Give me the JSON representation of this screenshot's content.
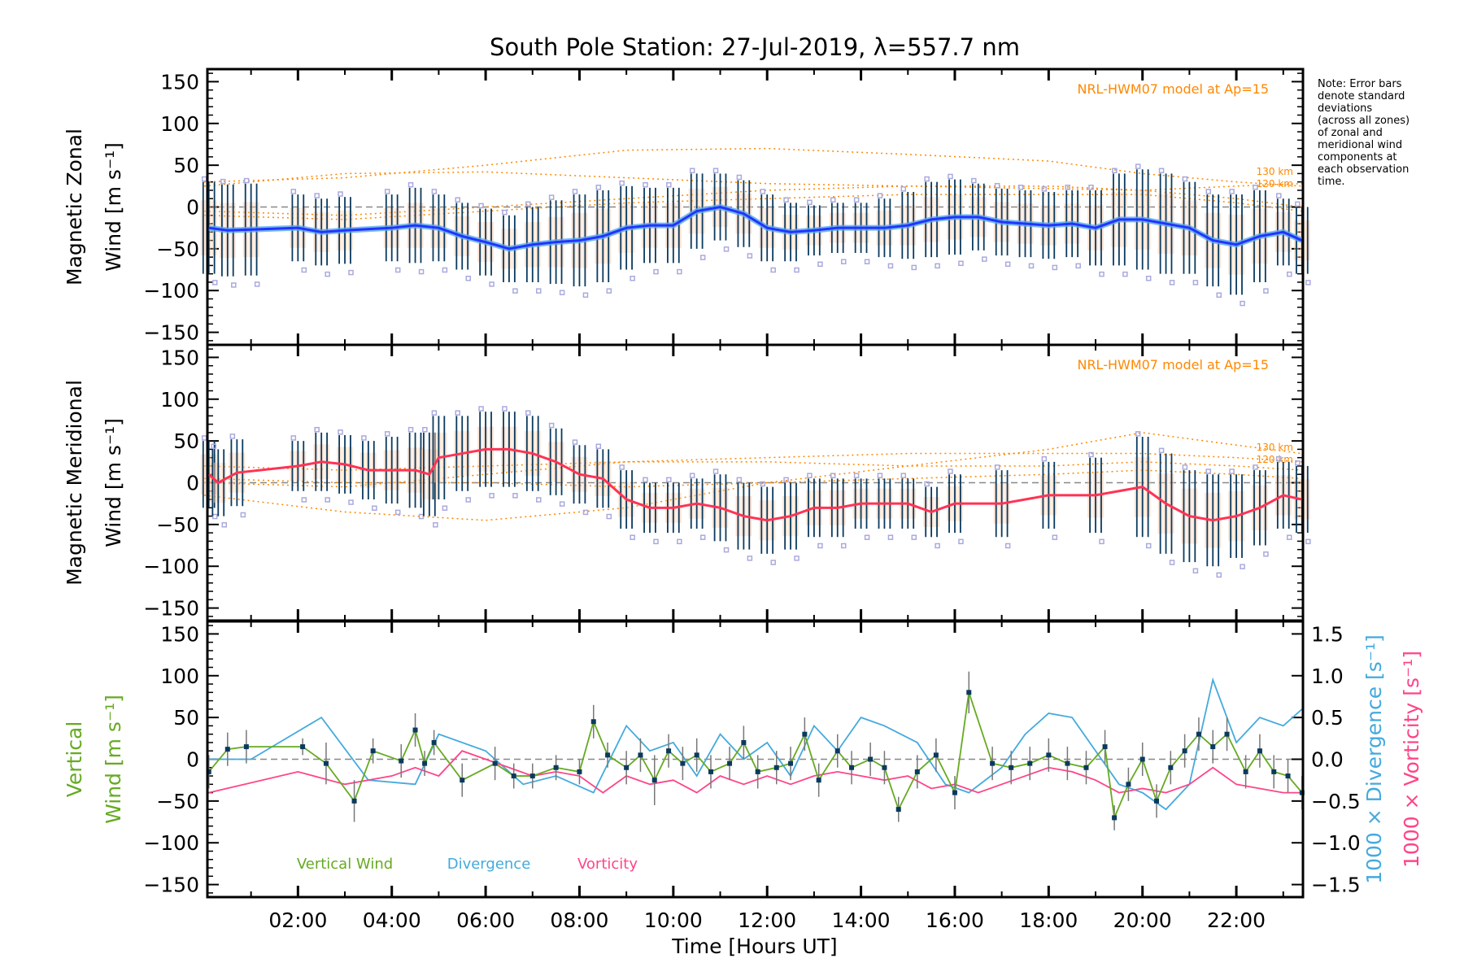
{
  "title": "South Pole Station: 27-Jul-2019, λ=557.7 nm",
  "note": [
    "Note: Error bars",
    "denote standard",
    "deviations",
    "(across all zones)",
    "of zonal and",
    "meridional wind",
    "components at",
    "each observation",
    "time."
  ],
  "colors": {
    "zonal": "#2233ff",
    "zonal_light": "#55aaee",
    "meridional": "#ff3355",
    "model": "#ff8800",
    "vertical": "#66aa22",
    "divergence": "#44aadd",
    "vorticity": "#ff4488",
    "errbar": "#0b3a5e",
    "scatter": "#aaaadd"
  },
  "chart_data": [
    {
      "type": "line",
      "name": "zonal",
      "ylabel": [
        "Magnetic Zonal",
        "Wind [m s⁻¹]"
      ],
      "ylim": [
        -165,
        165
      ],
      "yticks": [
        150,
        100,
        50,
        0,
        -50,
        -100,
        -150
      ],
      "model_label": "NRL-HWM07 model at Ap=15",
      "model_alt_labels": [
        "130 km",
        "120 km"
      ],
      "x": [
        0.1,
        0.5,
        1,
        2,
        2.5,
        3,
        4,
        4.5,
        5,
        5.5,
        6,
        6.5,
        7,
        7.5,
        8,
        8.5,
        9,
        9.5,
        10,
        10.5,
        11,
        11.5,
        12,
        12.5,
        13,
        13.5,
        14,
        14.5,
        15,
        15.5,
        16,
        16.5,
        17,
        17.5,
        18,
        18.5,
        19,
        19.5,
        20,
        20.5,
        21,
        21.5,
        22,
        22.5,
        23,
        23.4
      ],
      "values": [
        -25,
        -28,
        -27,
        -25,
        -30,
        -28,
        -25,
        -22,
        -25,
        -35,
        -42,
        -50,
        -45,
        -42,
        -40,
        -35,
        -25,
        -22,
        -22,
        -5,
        0,
        -8,
        -25,
        -30,
        -28,
        -25,
        -25,
        -25,
        -22,
        -15,
        -12,
        -12,
        -18,
        -20,
        -22,
        -20,
        -25,
        -15,
        -15,
        -20,
        -25,
        -40,
        -45,
        -35,
        -30,
        -40
      ],
      "spread": [
        55,
        55,
        55,
        40,
        40,
        40,
        40,
        45,
        40,
        40,
        40,
        40,
        45,
        50,
        55,
        55,
        50,
        45,
        45,
        45,
        40,
        40,
        40,
        35,
        30,
        30,
        30,
        35,
        40,
        45,
        45,
        40,
        40,
        40,
        40,
        40,
        45,
        55,
        60,
        60,
        55,
        55,
        60,
        55,
        40,
        40
      ],
      "model": [
        {
          "x": [
            0,
            3,
            6,
            9,
            12,
            15,
            18,
            20,
            22,
            23.4
          ],
          "values": [
            30,
            35,
            50,
            68,
            70,
            63,
            55,
            40,
            30,
            25
          ]
        },
        {
          "x": [
            0,
            3,
            6,
            9,
            12,
            15,
            18,
            20,
            22,
            23.4
          ],
          "values": [
            25,
            40,
            42,
            35,
            28,
            25,
            22,
            20,
            25,
            28
          ]
        },
        {
          "x": [
            0,
            3,
            6,
            9,
            12,
            15,
            18,
            20,
            22,
            23.4
          ],
          "values": [
            -5,
            -10,
            0,
            10,
            20,
            25,
            25,
            20,
            10,
            0
          ]
        },
        {
          "x": [
            0,
            3,
            6,
            9,
            12,
            15,
            18,
            20,
            22,
            23.4
          ],
          "values": [
            -10,
            -15,
            -5,
            5,
            10,
            15,
            15,
            15,
            5,
            -5
          ]
        }
      ]
    },
    {
      "type": "line",
      "name": "meridional",
      "ylabel": [
        "Magnetic Meridional",
        "Wind [m s⁻¹]"
      ],
      "ylim": [
        -165,
        165
      ],
      "yticks": [
        150,
        100,
        50,
        0,
        -50,
        -100,
        -150
      ],
      "model_label": "NRL-HWM07 model at Ap=15",
      "model_alt_labels": [
        "130 km",
        "120 km"
      ],
      "x": [
        0.1,
        0.3,
        0.7,
        2,
        2.5,
        3,
        3.5,
        4,
        4.5,
        4.8,
        5,
        5.5,
        6,
        6.5,
        7,
        7.5,
        8,
        8.5,
        9,
        9.5,
        10,
        10.5,
        11,
        11.5,
        12,
        12.5,
        13,
        13.5,
        14,
        14.5,
        15,
        15.5,
        16,
        17,
        18,
        19,
        20,
        20.5,
        21,
        21.5,
        22,
        22.5,
        23,
        23.4
      ],
      "values": [
        10,
        0,
        12,
        20,
        25,
        22,
        15,
        15,
        15,
        10,
        30,
        35,
        40,
        40,
        35,
        25,
        10,
        5,
        -20,
        -30,
        -30,
        -25,
        -30,
        -40,
        -45,
        -40,
        -30,
        -30,
        -25,
        -25,
        -25,
        -35,
        -25,
        -25,
        -15,
        -15,
        -5,
        -25,
        -40,
        -45,
        -40,
        -30,
        -15,
        -20
      ],
      "spread": [
        40,
        40,
        40,
        30,
        35,
        35,
        35,
        40,
        45,
        50,
        50,
        45,
        45,
        45,
        45,
        40,
        35,
        35,
        35,
        30,
        30,
        30,
        40,
        40,
        40,
        40,
        35,
        35,
        30,
        30,
        30,
        30,
        35,
        40,
        40,
        45,
        60,
        60,
        55,
        55,
        50,
        45,
        40,
        40
      ],
      "model": [
        {
          "x": [
            0,
            3,
            6,
            9,
            12,
            15,
            18,
            20,
            22,
            23.4
          ],
          "values": [
            -15,
            -35,
            -45,
            -30,
            0,
            20,
            40,
            60,
            45,
            35
          ]
        },
        {
          "x": [
            0,
            3,
            6,
            9,
            12,
            15,
            18,
            20,
            22,
            23.4
          ],
          "values": [
            0,
            -5,
            10,
            25,
            30,
            35,
            35,
            35,
            30,
            25
          ]
        },
        {
          "x": [
            0,
            3,
            6,
            9,
            12,
            15,
            18,
            20,
            22,
            23.4
          ],
          "values": [
            20,
            15,
            20,
            25,
            25,
            20,
            20,
            25,
            20,
            15
          ]
        },
        {
          "x": [
            0,
            3,
            6,
            9,
            12,
            15,
            18,
            20,
            22,
            23.4
          ],
          "values": [
            5,
            0,
            0,
            -5,
            0,
            5,
            10,
            15,
            10,
            5
          ]
        }
      ]
    },
    {
      "type": "line",
      "name": "vertical",
      "ylabel": [
        "Vertical",
        "Wind [m s⁻¹]"
      ],
      "ylim": [
        -165,
        165
      ],
      "yticks": [
        150,
        100,
        50,
        0,
        -50,
        -100,
        -150
      ],
      "y2label_div": "1000 × Divergence [s⁻¹]",
      "y2label_vor": "1000 × Vorticity [s⁻¹]",
      "y2lim": [
        -1.65,
        1.65
      ],
      "y2ticks": [
        "1.5",
        "1.0",
        "0.5",
        "0.0",
        "-0.5",
        "-1.0",
        "-1.5"
      ],
      "legend": [
        "Vertical Wind",
        "Divergence",
        "Vorticity"
      ],
      "xlabel": "Time [Hours UT]",
      "xticks": [
        "02:00",
        "04:00",
        "06:00",
        "08:00",
        "10:00",
        "12:00",
        "14:00",
        "16:00",
        "18:00",
        "20:00",
        "22:00"
      ],
      "xlim": [
        0.07,
        23.42
      ],
      "x": [
        0.1,
        0.5,
        0.9,
        2.1,
        2.6,
        3.2,
        3.6,
        4.2,
        4.5,
        4.7,
        4.9,
        5.5,
        6.2,
        6.6,
        7,
        7.5,
        8,
        8.3,
        8.6,
        9,
        9.3,
        9.6,
        9.9,
        10.2,
        10.5,
        10.8,
        11.2,
        11.5,
        11.8,
        12.2,
        12.5,
        12.8,
        13.1,
        13.5,
        13.8,
        14.2,
        14.5,
        14.8,
        15.2,
        15.6,
        16,
        16.3,
        16.8,
        17.2,
        17.6,
        18,
        18.4,
        18.8,
        19.2,
        19.4,
        19.7,
        20,
        20.3,
        20.6,
        20.9,
        21.2,
        21.5,
        21.8,
        22.2,
        22.5,
        22.8,
        23.1,
        23.4
      ],
      "values": [
        -15,
        12,
        15,
        15,
        -5,
        -50,
        10,
        -2,
        35,
        -5,
        20,
        -25,
        -5,
        -20,
        -20,
        -10,
        -15,
        45,
        5,
        -10,
        5,
        -25,
        10,
        -5,
        5,
        -15,
        -5,
        20,
        -15,
        -10,
        -5,
        30,
        -25,
        10,
        -10,
        0,
        -10,
        -60,
        -15,
        5,
        -40,
        80,
        -5,
        -10,
        -5,
        5,
        -5,
        -10,
        15,
        -70,
        -30,
        0,
        -50,
        -10,
        10,
        30,
        15,
        30,
        -15,
        10,
        -15,
        -20,
        -40
      ],
      "errors": [
        20,
        20,
        20,
        10,
        25,
        25,
        15,
        20,
        20,
        15,
        15,
        20,
        20,
        15,
        15,
        15,
        15,
        20,
        15,
        20,
        20,
        30,
        20,
        20,
        20,
        20,
        20,
        20,
        20,
        20,
        20,
        20,
        20,
        20,
        20,
        20,
        20,
        15,
        20,
        20,
        20,
        25,
        20,
        20,
        20,
        20,
        20,
        20,
        20,
        15,
        20,
        20,
        20,
        20,
        20,
        20,
        20,
        20,
        20,
        20,
        20,
        20,
        20
      ],
      "divergence_x": [
        0.1,
        1,
        2.5,
        3.5,
        4.5,
        5,
        6,
        6.8,
        7.5,
        8.3,
        9,
        9.5,
        10,
        10.5,
        11,
        11.5,
        12,
        12.5,
        13,
        13.5,
        14,
        14.5,
        15.2,
        15.8,
        16.3,
        17,
        17.5,
        18,
        18.5,
        19,
        19.5,
        20,
        20.5,
        21,
        21.5,
        22,
        22.5,
        23,
        23.4
      ],
      "divergence": [
        0,
        0,
        0.5,
        -0.25,
        -0.3,
        0.3,
        0.1,
        -0.3,
        -0.2,
        -0.4,
        0.4,
        0.1,
        0.2,
        -0.2,
        0.3,
        0,
        0.2,
        -0.2,
        0.4,
        0.1,
        0.5,
        0.4,
        0.2,
        -0.3,
        -0.4,
        -0.1,
        0.3,
        0.55,
        0.5,
        0.1,
        -0.3,
        -0.4,
        -0.6,
        -0.3,
        0.95,
        0.2,
        0.5,
        0.4,
        0.6
      ],
      "vorticity_x": [
        0.1,
        2,
        3,
        4,
        4.5,
        5,
        5.5,
        6,
        6.5,
        7,
        7.5,
        8,
        8.5,
        9,
        9.5,
        10,
        10.5,
        11,
        11.5,
        12,
        12.5,
        13,
        13.5,
        14,
        14.5,
        15,
        15.5,
        16,
        16.5,
        17,
        17.5,
        18,
        18.5,
        19,
        19.5,
        20,
        20.5,
        21,
        21.5,
        22,
        22.5,
        23,
        23.4
      ],
      "vorticity": [
        -0.4,
        -0.15,
        -0.3,
        -0.2,
        -0.1,
        -0.2,
        0.1,
        0,
        -0.1,
        -0.2,
        -0.15,
        -0.2,
        -0.4,
        -0.2,
        -0.3,
        -0.25,
        -0.4,
        -0.2,
        -0.3,
        -0.2,
        -0.3,
        -0.2,
        -0.15,
        -0.2,
        -0.25,
        -0.2,
        -0.35,
        -0.3,
        -0.4,
        -0.3,
        -0.2,
        -0.1,
        -0.15,
        -0.25,
        -0.4,
        -0.35,
        -0.4,
        -0.3,
        -0.1,
        -0.3,
        -0.35,
        -0.4,
        -0.4
      ]
    }
  ]
}
